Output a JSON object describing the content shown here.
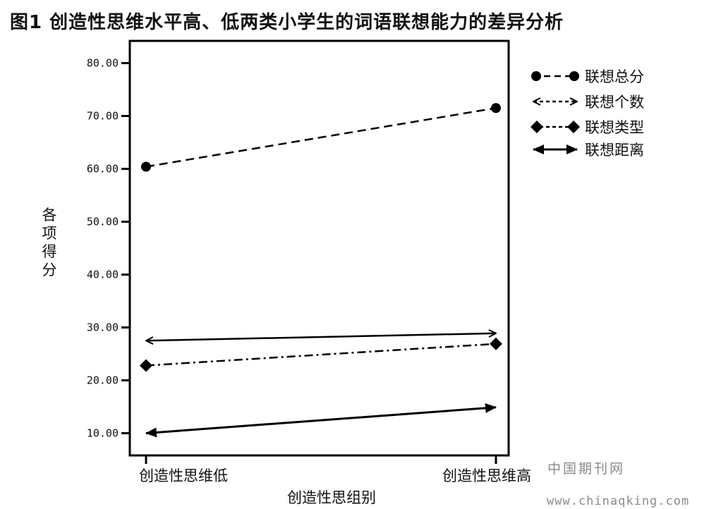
{
  "title": "图1  创造性思维水平高、低两类小学生的词语联想能力的差异分析",
  "watermark": {
    "text": "中国期刊网",
    "url": "www.chinaqking.com"
  },
  "chart_data": {
    "type": "line",
    "title": "图1  创造性思维水平高、低两类小学生的词语联想能力的差异分析",
    "xlabel": "创造性思组别",
    "ylabel": "各项得分",
    "categories": [
      "创造性思维低",
      "创造性思维高"
    ],
    "ylim": [
      5,
      85
    ],
    "yticks": [
      10,
      20,
      30,
      40,
      50,
      60,
      70,
      80
    ],
    "ytick_labels": [
      "10.00",
      "20.00",
      "30.00",
      "40.00",
      "50.00",
      "60.00",
      "70.00",
      "80.00"
    ],
    "grid": false,
    "legend_position": "outside-top-right",
    "series": [
      {
        "name": "联想总分",
        "values": [
          60.4,
          71.5
        ],
        "line": "dashed",
        "marker": "circle",
        "color": "#000000"
      },
      {
        "name": "联想个数",
        "values": [
          27.5,
          28.9
        ],
        "line": "solid",
        "marker": "open-arrow",
        "color": "#000000"
      },
      {
        "name": "联想类型",
        "values": [
          22.8,
          26.9
        ],
        "line": "dash-dot",
        "marker": "diamond",
        "color": "#000000"
      },
      {
        "name": "联想距离",
        "values": [
          10.0,
          14.9
        ],
        "line": "solid",
        "marker": "filled-arrow",
        "color": "#000000"
      }
    ]
  }
}
